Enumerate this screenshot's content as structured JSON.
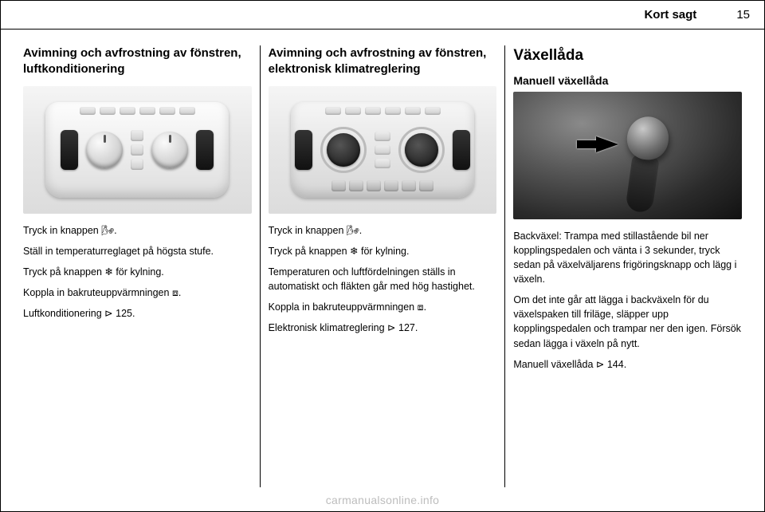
{
  "header": {
    "section": "Kort sagt",
    "page": "15"
  },
  "col1": {
    "heading": "Avimning och avfrostning av fönstren, luftkonditionering",
    "p1_pre": "Tryck in knappen ",
    "p1_glyph": "🌬",
    "p1_post": ".",
    "p2": "Ställ in temperaturreglaget på högsta stufe.",
    "p3_pre": "Tryck på knappen ",
    "p3_glyph": "❄",
    "p3_post": " för kylning.",
    "p4_pre": "Koppla in bakruteuppvärmningen ",
    "p4_glyph": "⧈",
    "p4_post": ".",
    "p5_pre": "Luftkonditionering ",
    "p5_glyph": "⊳",
    "p5_post": " 125."
  },
  "col2": {
    "heading": "Avimning och avfrostning av fönstren, elektronisk klimatreglering",
    "p1_pre": "Tryck in knappen ",
    "p1_glyph": "🌬",
    "p1_post": ".",
    "p2_pre": "Tryck på knappen ",
    "p2_glyph": "❄",
    "p2_post": " för kylning.",
    "p3": "Temperaturen och luftfördelningen ställs in automatiskt och fläkten går med hög hastighet.",
    "p4_pre": "Koppla in bakruteuppvärmningen ",
    "p4_glyph": "⧈",
    "p4_post": ".",
    "p5_pre": "Elektronisk klimatreglering ",
    "p5_glyph": "⊳",
    "p5_post": " 127."
  },
  "col3": {
    "heading": "Växellåda",
    "sub": "Manuell växellåda",
    "p1": "Backväxel: Trampa med stillastående bil ner kopplingspedalen och vänta i 3 sekunder, tryck sedan på växelväljarens frigöringsknapp och lägg i växeln.",
    "p2": "Om det inte går att lägga i backväxeln för du växelspaken till friläge, släpper upp kopplingspedalen och trampar ner den igen. Försök sedan lägga i växeln på nytt.",
    "p3_pre": "Manuell växellåda ",
    "p3_glyph": "⊳",
    "p3_post": " 144."
  },
  "watermark": "carmanualsonline.info"
}
